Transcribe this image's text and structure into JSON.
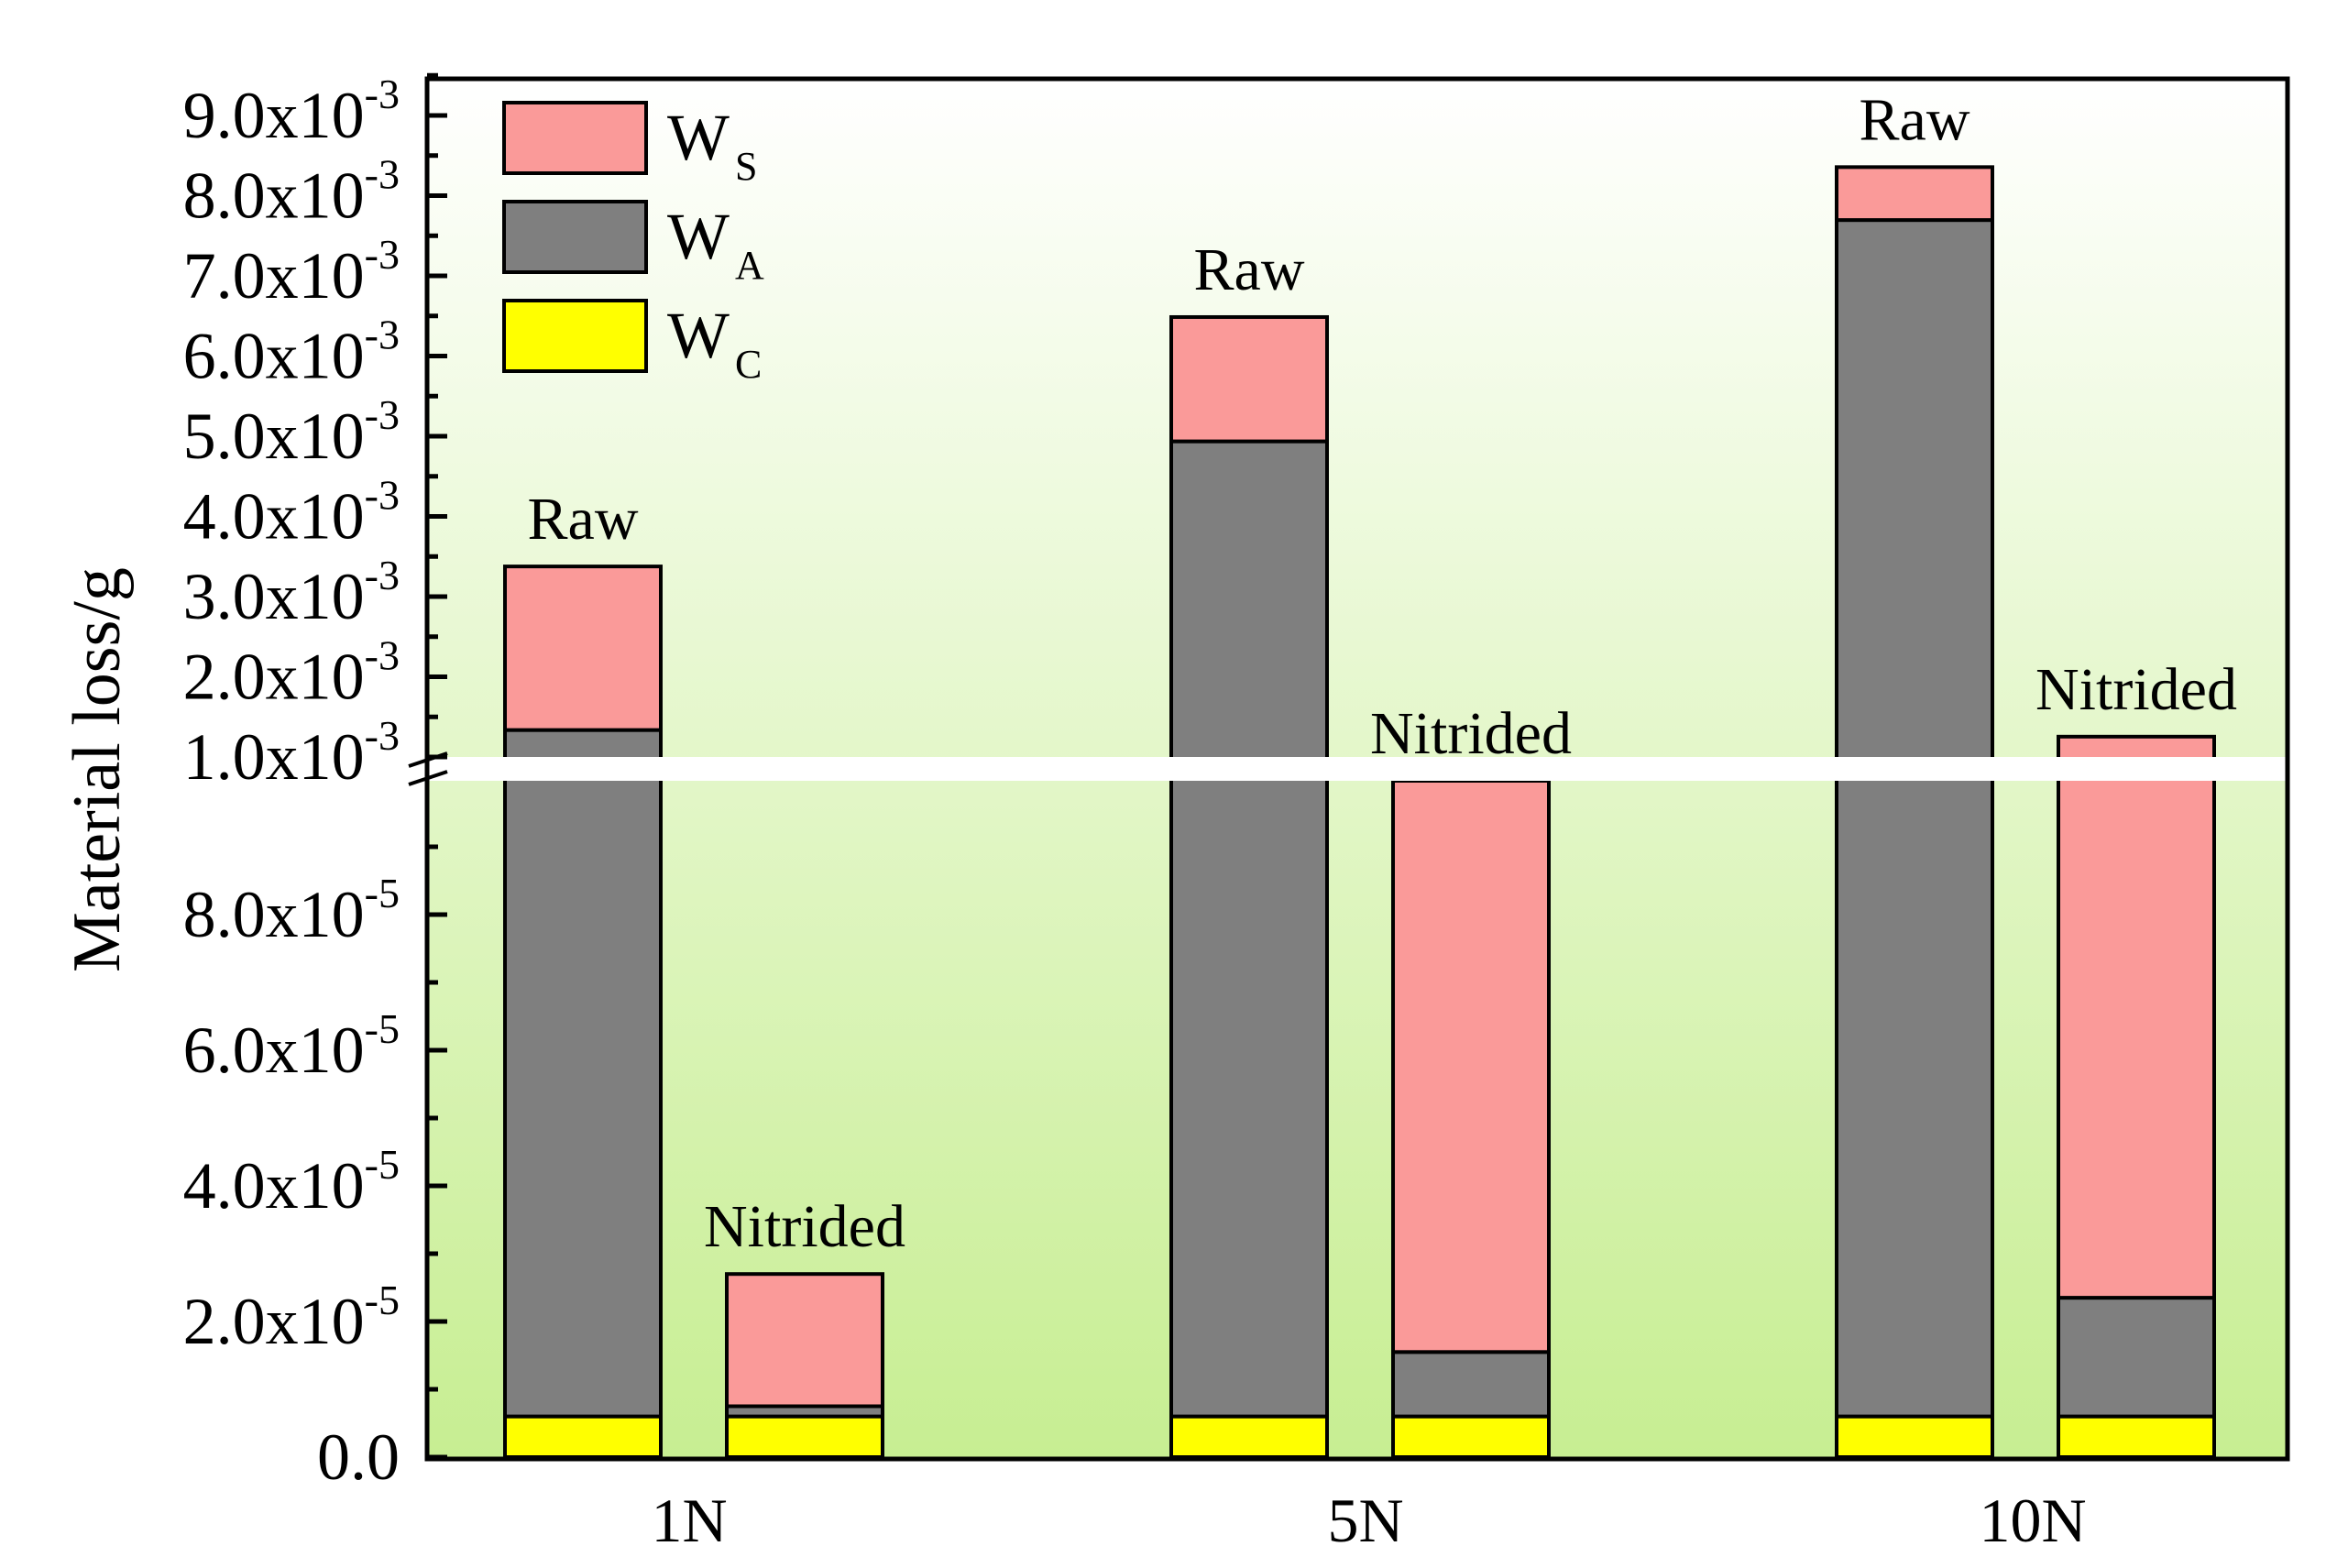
{
  "chart_data": {
    "type": "bar",
    "stacked": true,
    "broken_y_axis": true,
    "ylabel": "Material loss/g",
    "xlabel": "",
    "categories": [
      "1N",
      "5N",
      "10N"
    ],
    "groups": [
      "Raw",
      "Nitrided"
    ],
    "legend": [
      {
        "key": "ws",
        "main": "W",
        "sub": "S",
        "color": "#fa9a99"
      },
      {
        "key": "wa",
        "main": "W",
        "sub": "A",
        "color": "#7f7f7f"
      },
      {
        "key": "wc",
        "main": "W",
        "sub": "C",
        "color": "#ffff00"
      }
    ],
    "legend_position": "top-left",
    "y_ticks_lower": [
      {
        "value": 0,
        "text": "0.0",
        "exp": ""
      },
      {
        "value": 2e-05,
        "text": "2.0x10",
        "exp": "-5"
      },
      {
        "value": 4e-05,
        "text": "4.0x10",
        "exp": "-5"
      },
      {
        "value": 6e-05,
        "text": "6.0x10",
        "exp": "-5"
      },
      {
        "value": 8e-05,
        "text": "8.0x10",
        "exp": "-5"
      }
    ],
    "y_ticks_upper": [
      {
        "value": 0.001,
        "text": "1.0x10",
        "exp": "-3"
      },
      {
        "value": 0.002,
        "text": "2.0x10",
        "exp": "-3"
      },
      {
        "value": 0.003,
        "text": "3.0x10",
        "exp": "-3"
      },
      {
        "value": 0.004,
        "text": "4.0x10",
        "exp": "-3"
      },
      {
        "value": 0.005,
        "text": "5.0x10",
        "exp": "-3"
      },
      {
        "value": 0.006,
        "text": "6.0x10",
        "exp": "-3"
      },
      {
        "value": 0.007,
        "text": "7.0x10",
        "exp": "-3"
      },
      {
        "value": 0.008,
        "text": "8.0x10",
        "exp": "-3"
      },
      {
        "value": 0.009,
        "text": "9.0x10",
        "exp": "-3"
      }
    ],
    "lower_range": [
      0,
      0.0001
    ],
    "upper_range": [
      0.001,
      0.009
    ],
    "bars": [
      {
        "category": "1N",
        "group": "Raw",
        "label": "Raw",
        "wc": 6e-06,
        "wa": 0.00133,
        "ws": 0.00204
      },
      {
        "category": "1N",
        "group": "Nitrided",
        "label": "Nitrided",
        "wc": 6e-06,
        "wa": 1.5e-06,
        "ws": 1.95e-05
      },
      {
        "category": "5N",
        "group": "Raw",
        "label": "Raw",
        "wc": 6e-06,
        "wa": 0.00493,
        "ws": 0.00155
      },
      {
        "category": "5N",
        "group": "Nitrided",
        "label": "Nitrided",
        "wc": 6e-06,
        "wa": 9.5e-06,
        "ws": 0.00098
      },
      {
        "category": "10N",
        "group": "Raw",
        "label": "Raw",
        "wc": 6e-06,
        "wa": 0.00769,
        "ws": 0.00066
      },
      {
        "category": "10N",
        "group": "Nitrided",
        "label": "Nitrided",
        "wc": 6e-06,
        "wa": 1.75e-05,
        "ws": 0.00123
      }
    ]
  }
}
